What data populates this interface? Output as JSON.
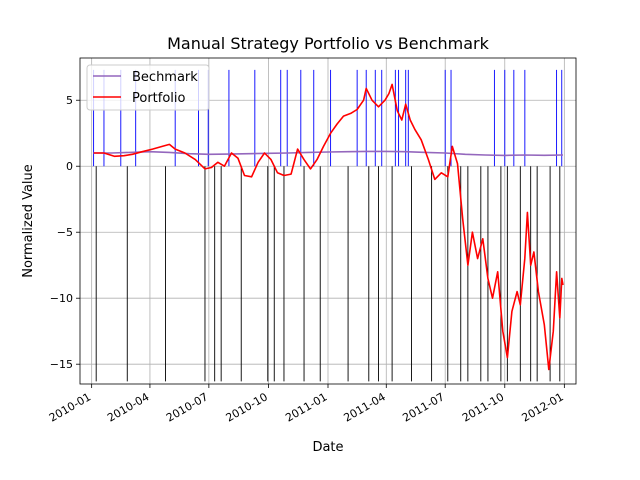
{
  "chart_data": {
    "type": "line",
    "title": "Manual Strategy Portfolio vs Benchmark",
    "xlabel": "Date",
    "ylabel": "Normalized Value",
    "xlim": [
      "2009-12-14",
      "2012-01-19"
    ],
    "ylim": [
      -16.5,
      8.2
    ],
    "x_ticks": [
      "2010-01",
      "2010-04",
      "2010-07",
      "2010-10",
      "2011-01",
      "2011-04",
      "2011-07",
      "2011-10",
      "2012-01"
    ],
    "x_tick_dates": [
      "2010-01-01",
      "2010-04-01",
      "2010-07-01",
      "2010-10-01",
      "2011-01-01",
      "2011-04-01",
      "2011-07-01",
      "2011-10-01",
      "2012-01-01"
    ],
    "y_ticks": [
      5,
      0,
      -5,
      -10,
      -15
    ],
    "grid": true,
    "legend_position": "top-left",
    "series": [
      {
        "name": "Bechmark",
        "color": "#9467bd",
        "points": [
          [
            "2010-01-04",
            1.0
          ],
          [
            "2010-02-01",
            1.0
          ],
          [
            "2010-03-01",
            1.05
          ],
          [
            "2010-04-01",
            1.1
          ],
          [
            "2010-05-01",
            1.05
          ],
          [
            "2010-06-01",
            0.95
          ],
          [
            "2010-07-01",
            0.9
          ],
          [
            "2010-08-01",
            0.92
          ],
          [
            "2010-09-01",
            0.95
          ],
          [
            "2010-10-01",
            0.98
          ],
          [
            "2010-11-01",
            1.0
          ],
          [
            "2010-12-01",
            1.05
          ],
          [
            "2011-01-01",
            1.08
          ],
          [
            "2011-02-01",
            1.1
          ],
          [
            "2011-03-01",
            1.12
          ],
          [
            "2011-04-01",
            1.12
          ],
          [
            "2011-05-01",
            1.1
          ],
          [
            "2011-06-01",
            1.05
          ],
          [
            "2011-07-01",
            1.0
          ],
          [
            "2011-08-01",
            0.9
          ],
          [
            "2011-09-01",
            0.85
          ],
          [
            "2011-10-01",
            0.82
          ],
          [
            "2011-11-01",
            0.85
          ],
          [
            "2011-12-01",
            0.83
          ],
          [
            "2011-12-30",
            0.85
          ]
        ]
      },
      {
        "name": "Portfolio",
        "color": "#ff0000",
        "points": [
          [
            "2010-01-04",
            1.0
          ],
          [
            "2010-01-20",
            1.0
          ],
          [
            "2010-02-05",
            0.75
          ],
          [
            "2010-02-20",
            0.8
          ],
          [
            "2010-03-05",
            0.9
          ],
          [
            "2010-03-20",
            1.1
          ],
          [
            "2010-04-05",
            1.3
          ],
          [
            "2010-04-20",
            1.5
          ],
          [
            "2010-05-01",
            1.65
          ],
          [
            "2010-05-10",
            1.3
          ],
          [
            "2010-05-25",
            1.0
          ],
          [
            "2010-06-10",
            0.5
          ],
          [
            "2010-06-25",
            -0.2
          ],
          [
            "2010-07-05",
            -0.1
          ],
          [
            "2010-07-15",
            0.3
          ],
          [
            "2010-07-25",
            0.0
          ],
          [
            "2010-08-05",
            1.0
          ],
          [
            "2010-08-15",
            0.6
          ],
          [
            "2010-08-25",
            -0.7
          ],
          [
            "2010-09-05",
            -0.8
          ],
          [
            "2010-09-15",
            0.3
          ],
          [
            "2010-09-25",
            1.0
          ],
          [
            "2010-10-05",
            0.5
          ],
          [
            "2010-10-15",
            -0.5
          ],
          [
            "2010-10-25",
            -0.7
          ],
          [
            "2010-11-05",
            -0.6
          ],
          [
            "2010-11-15",
            1.3
          ],
          [
            "2010-11-25",
            0.5
          ],
          [
            "2010-12-05",
            -0.2
          ],
          [
            "2010-12-15",
            0.5
          ],
          [
            "2010-12-25",
            1.5
          ],
          [
            "2011-01-05",
            2.5
          ],
          [
            "2011-01-15",
            3.2
          ],
          [
            "2011-01-25",
            3.8
          ],
          [
            "2011-02-05",
            4.0
          ],
          [
            "2011-02-15",
            4.3
          ],
          [
            "2011-02-25",
            5.0
          ],
          [
            "2011-03-01",
            5.9
          ],
          [
            "2011-03-10",
            5.0
          ],
          [
            "2011-03-20",
            4.5
          ],
          [
            "2011-03-30",
            5.0
          ],
          [
            "2011-04-05",
            5.5
          ],
          [
            "2011-04-10",
            6.2
          ],
          [
            "2011-04-18",
            4.2
          ],
          [
            "2011-04-25",
            3.5
          ],
          [
            "2011-05-01",
            4.7
          ],
          [
            "2011-05-08",
            3.5
          ],
          [
            "2011-05-15",
            2.8
          ],
          [
            "2011-05-25",
            2.0
          ],
          [
            "2011-06-05",
            0.5
          ],
          [
            "2011-06-15",
            -1.0
          ],
          [
            "2011-06-25",
            -0.5
          ],
          [
            "2011-07-05",
            -0.8
          ],
          [
            "2011-07-12",
            1.5
          ],
          [
            "2011-07-20",
            0.2
          ],
          [
            "2011-07-28",
            -4.0
          ],
          [
            "2011-08-05",
            -7.5
          ],
          [
            "2011-08-12",
            -5.0
          ],
          [
            "2011-08-20",
            -7.0
          ],
          [
            "2011-08-28",
            -5.5
          ],
          [
            "2011-09-05",
            -8.5
          ],
          [
            "2011-09-12",
            -10.0
          ],
          [
            "2011-09-20",
            -8.0
          ],
          [
            "2011-09-28",
            -12.5
          ],
          [
            "2011-10-05",
            -14.5
          ],
          [
            "2011-10-12",
            -11.0
          ],
          [
            "2011-10-20",
            -9.5
          ],
          [
            "2011-10-25",
            -10.5
          ],
          [
            "2011-11-01",
            -7.0
          ],
          [
            "2011-11-05",
            -3.5
          ],
          [
            "2011-11-10",
            -7.5
          ],
          [
            "2011-11-15",
            -6.5
          ],
          [
            "2011-11-22",
            -9.5
          ],
          [
            "2011-12-01",
            -12.0
          ],
          [
            "2011-12-08",
            -15.4
          ],
          [
            "2011-12-15",
            -12.5
          ],
          [
            "2011-12-20",
            -8.0
          ],
          [
            "2011-12-25",
            -11.5
          ],
          [
            "2011-12-28",
            -8.5
          ],
          [
            "2011-12-30",
            -9.0
          ]
        ]
      }
    ],
    "signals": {
      "long": {
        "color": "#0000ff",
        "dates": [
          "2010-01-04",
          "2010-01-20",
          "2010-02-15",
          "2010-03-10",
          "2010-05-10",
          "2010-06-15",
          "2010-06-30",
          "2010-08-01",
          "2010-09-10",
          "2010-10-20",
          "2010-10-30",
          "2010-11-20",
          "2010-12-10",
          "2011-01-05",
          "2011-02-15",
          "2011-03-01",
          "2011-03-15",
          "2011-03-25",
          "2011-04-15",
          "2011-04-20",
          "2011-05-01",
          "2011-05-05",
          "2011-07-01",
          "2011-07-10",
          "2011-09-15",
          "2011-10-01",
          "2011-10-15",
          "2011-11-01",
          "2011-12-20",
          "2011-12-28"
        ]
      },
      "short": {
        "color": "#000000",
        "dates": [
          "2010-01-08",
          "2010-02-25",
          "2010-04-25",
          "2010-06-25",
          "2010-07-10",
          "2010-07-20",
          "2010-08-20",
          "2010-09-30",
          "2010-10-10",
          "2010-10-25",
          "2010-11-25",
          "2010-12-20",
          "2011-02-01",
          "2011-03-05",
          "2011-03-20",
          "2011-04-10",
          "2011-05-10",
          "2011-06-10",
          "2011-07-05",
          "2011-07-25",
          "2011-08-05",
          "2011-08-25",
          "2011-09-05",
          "2011-09-25",
          "2011-10-05",
          "2011-10-25",
          "2011-11-10",
          "2011-11-20",
          "2011-12-10",
          "2011-12-25"
        ]
      }
    }
  }
}
